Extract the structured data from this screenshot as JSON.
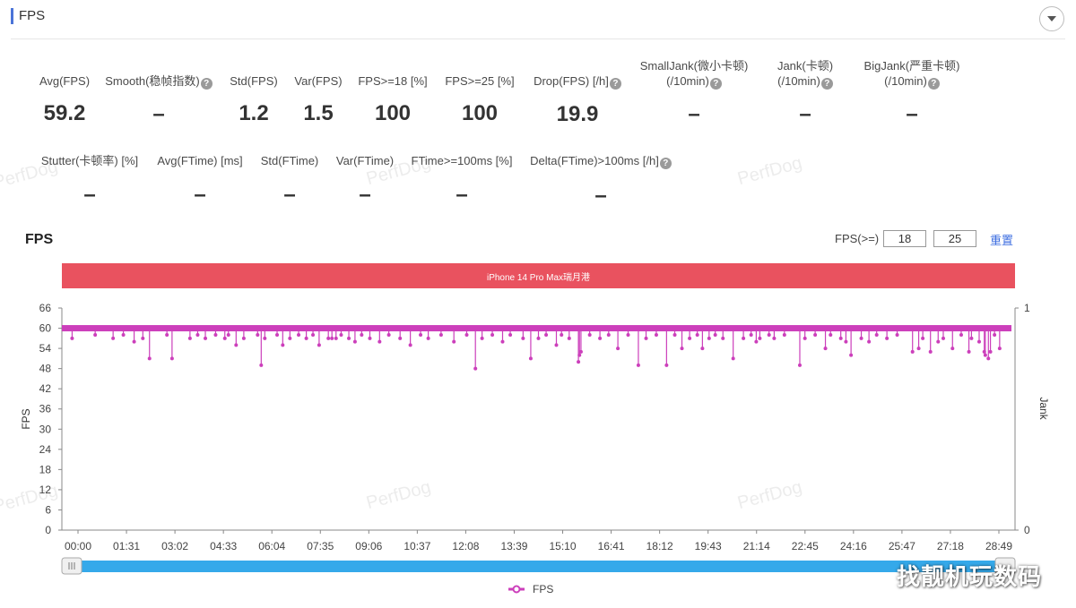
{
  "section": {
    "title": "FPS"
  },
  "stats_row1": [
    {
      "label_line1": "",
      "label_line2": "Avg(FPS)",
      "has_help": false,
      "value": "59.2"
    },
    {
      "label_line1": "",
      "label_line2": "Smooth(稳帧指数)",
      "has_help": true,
      "value": "–"
    },
    {
      "label_line1": "",
      "label_line2": "Std(FPS)",
      "has_help": false,
      "value": "1.2"
    },
    {
      "label_line1": "",
      "label_line2": "Var(FPS)",
      "has_help": false,
      "value": "1.5"
    },
    {
      "label_line1": "",
      "label_line2": "FPS>=18 [%]",
      "has_help": false,
      "value": "100"
    },
    {
      "label_line1": "",
      "label_line2": "FPS>=25 [%]",
      "has_help": false,
      "value": "100"
    },
    {
      "label_line1": "",
      "label_line2": "Drop(FPS) [/h]",
      "has_help": true,
      "value": "19.9"
    },
    {
      "label_line1": "SmallJank(微小卡顿)",
      "label_line2": "(/10min)",
      "has_help": true,
      "value": "–"
    },
    {
      "label_line1": "Jank(卡顿)",
      "label_line2": "(/10min)",
      "has_help": true,
      "value": "–"
    },
    {
      "label_line1": "BigJank(严重卡顿)",
      "label_line2": "(/10min)",
      "has_help": true,
      "value": "–"
    }
  ],
  "stats_row2": [
    {
      "label": "Stutter(卡顿率) [%]",
      "has_help": false,
      "value": "–"
    },
    {
      "label": "Avg(FTime) [ms]",
      "has_help": false,
      "value": "–"
    },
    {
      "label": "Std(FTime)",
      "has_help": false,
      "value": "–"
    },
    {
      "label": "Var(FTime)",
      "has_help": false,
      "value": "–"
    },
    {
      "label": "FTime>=100ms [%]",
      "has_help": false,
      "value": "–"
    },
    {
      "label": "Delta(FTime)>100ms [/h]",
      "has_help": true,
      "value": "–"
    }
  ],
  "chart_header": {
    "title": "FPS",
    "threshold_label": "FPS(>=)",
    "threshold1": "18",
    "threshold2": "25",
    "reset_label": "重置"
  },
  "device_label": "iPhone 14 Pro Max瑞月港",
  "watermark": "PerfDog",
  "bottom_watermark": "找靓机玩数码",
  "colors": {
    "series": "#cc3fbb",
    "device_bar": "#e9525f",
    "scrollbar": "#35a9ea",
    "accent": "#4b74d8"
  },
  "chart_data": {
    "type": "line",
    "title": "FPS",
    "ylabel": "FPS",
    "y2label": "Jank",
    "ylim": [
      0,
      66
    ],
    "yticks": [
      0,
      6,
      12,
      18,
      24,
      30,
      36,
      42,
      48,
      54,
      60,
      66
    ],
    "y2lim": [
      0,
      1
    ],
    "y2ticks": [
      0,
      1
    ],
    "xlabels": [
      "00:00",
      "01:31",
      "03:02",
      "04:33",
      "06:04",
      "07:35",
      "09:06",
      "10:37",
      "12:08",
      "13:39",
      "15:10",
      "16:41",
      "18:12",
      "19:43",
      "21:14",
      "22:45",
      "24:16",
      "25:47",
      "27:18",
      "28:49"
    ],
    "duration_seconds": 1860,
    "baseline": 60,
    "legend": [
      "FPS"
    ],
    "dips": [
      [
        20,
        57
      ],
      [
        65,
        58
      ],
      [
        100,
        57
      ],
      [
        120,
        58
      ],
      [
        141,
        56
      ],
      [
        158,
        57
      ],
      [
        171,
        51
      ],
      [
        205,
        58
      ],
      [
        215,
        51
      ],
      [
        250,
        57
      ],
      [
        265,
        58
      ],
      [
        280,
        57
      ],
      [
        300,
        58
      ],
      [
        318,
        57
      ],
      [
        325,
        58
      ],
      [
        340,
        55
      ],
      [
        355,
        57
      ],
      [
        382,
        58
      ],
      [
        389,
        49
      ],
      [
        396,
        57
      ],
      [
        420,
        58
      ],
      [
        431,
        55
      ],
      [
        445,
        57
      ],
      [
        462,
        58
      ],
      [
        477,
        57
      ],
      [
        490,
        58
      ],
      [
        502,
        55
      ],
      [
        520,
        57
      ],
      [
        527,
        57
      ],
      [
        535,
        57
      ],
      [
        545,
        58
      ],
      [
        560,
        57
      ],
      [
        572,
        56
      ],
      [
        585,
        58
      ],
      [
        601,
        57
      ],
      [
        620,
        56
      ],
      [
        638,
        58
      ],
      [
        660,
        57
      ],
      [
        680,
        55
      ],
      [
        700,
        58
      ],
      [
        715,
        57
      ],
      [
        740,
        58
      ],
      [
        765,
        56
      ],
      [
        790,
        58
      ],
      [
        807,
        48
      ],
      [
        820,
        57
      ],
      [
        840,
        58
      ],
      [
        860,
        56
      ],
      [
        875,
        58
      ],
      [
        900,
        57
      ],
      [
        915,
        51
      ],
      [
        930,
        57
      ],
      [
        945,
        58
      ],
      [
        965,
        55
      ],
      [
        975,
        58
      ],
      [
        990,
        57
      ],
      [
        1008,
        50
      ],
      [
        1010,
        52
      ],
      [
        1013,
        53
      ],
      [
        1030,
        58
      ],
      [
        1050,
        57
      ],
      [
        1067,
        58
      ],
      [
        1085,
        54
      ],
      [
        1105,
        58
      ],
      [
        1125,
        49
      ],
      [
        1140,
        57
      ],
      [
        1160,
        58
      ],
      [
        1180,
        49
      ],
      [
        1196,
        58
      ],
      [
        1210,
        54
      ],
      [
        1225,
        57
      ],
      [
        1240,
        58
      ],
      [
        1250,
        54
      ],
      [
        1263,
        57
      ],
      [
        1275,
        58
      ],
      [
        1290,
        57
      ],
      [
        1310,
        51
      ],
      [
        1330,
        57
      ],
      [
        1345,
        58
      ],
      [
        1355,
        56
      ],
      [
        1362,
        57
      ],
      [
        1380,
        58
      ],
      [
        1390,
        57
      ],
      [
        1410,
        58
      ],
      [
        1440,
        49
      ],
      [
        1450,
        57
      ],
      [
        1470,
        58
      ],
      [
        1490,
        54
      ],
      [
        1500,
        58
      ],
      [
        1520,
        57
      ],
      [
        1530,
        56
      ],
      [
        1540,
        52
      ],
      [
        1560,
        57
      ],
      [
        1575,
        56
      ],
      [
        1590,
        58
      ],
      [
        1610,
        57
      ],
      [
        1630,
        58
      ],
      [
        1660,
        53
      ],
      [
        1672,
        54
      ],
      [
        1680,
        57
      ],
      [
        1695,
        53
      ],
      [
        1710,
        56
      ],
      [
        1720,
        57
      ],
      [
        1738,
        54
      ],
      [
        1755,
        58
      ],
      [
        1770,
        53
      ],
      [
        1775,
        57
      ],
      [
        1790,
        56
      ],
      [
        1800,
        53
      ],
      [
        1802,
        52
      ],
      [
        1808,
        51
      ],
      [
        1812,
        53
      ],
      [
        1820,
        58
      ],
      [
        1830,
        54
      ]
    ]
  }
}
